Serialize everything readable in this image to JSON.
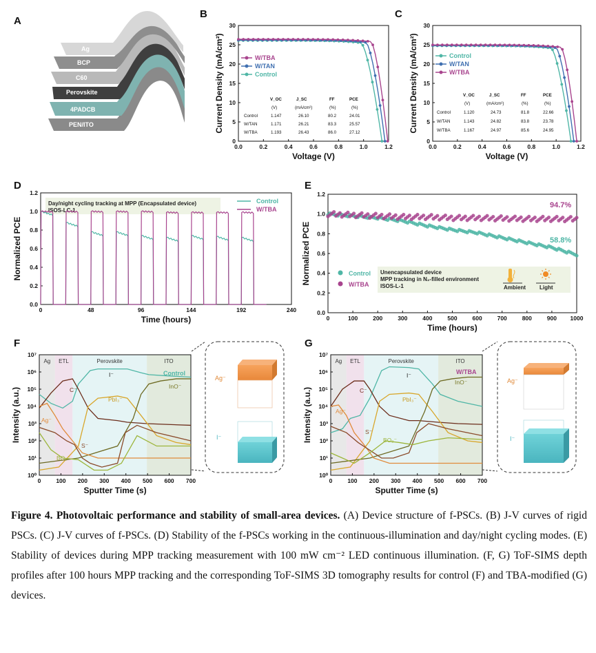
{
  "panelA": {
    "letter": "A",
    "layers": [
      "Ag",
      "BCP",
      "C60",
      "Perovskite",
      "4PADCB",
      "PEN/ITO"
    ]
  },
  "panelB": {
    "letter": "B",
    "legend": [
      "W/TBA",
      "W/TAN",
      "Control"
    ],
    "table": {
      "header1": [
        "V_OC",
        "J_SC",
        "FF",
        "PCE"
      ],
      "header2": [
        "(V)",
        "(mA/cm²)",
        "(%)",
        "(%)"
      ],
      "rows": [
        {
          "name": "Control",
          "voc": "1.147",
          "jsc": "26.10",
          "ff": "80.2",
          "pce": "24.01"
        },
        {
          "name": "W/TAN",
          "voc": "1.171",
          "jsc": "26.21",
          "ff": "83.3",
          "pce": "25.57"
        },
        {
          "name": "W/TBA",
          "voc": "1.193",
          "jsc": "26.43",
          "ff": "86.0",
          "pce": "27.12"
        }
      ]
    }
  },
  "panelC": {
    "letter": "C",
    "legend": [
      "Control",
      "W/TAN",
      "W/TBA"
    ],
    "table": {
      "header1": [
        "V_OC",
        "J_SC",
        "FF",
        "PCE"
      ],
      "header2": [
        "(V)",
        "(mA/cm²)",
        "(%)",
        "(%)"
      ],
      "rows": [
        {
          "name": "Control",
          "voc": "1.120",
          "jsc": "24.73",
          "ff": "81.8",
          "pce": "22.66"
        },
        {
          "name": "W/TAN",
          "voc": "1.143",
          "jsc": "24.82",
          "ff": "83.8",
          "pce": "23.78"
        },
        {
          "name": "W/TBA",
          "voc": "1.167",
          "jsc": "24.97",
          "ff": "85.6",
          "pce": "24.95"
        }
      ]
    }
  },
  "panelD": {
    "letter": "D",
    "annotation1": "Day/night cycling tracking at MPP (Encapsulated device)",
    "annotation2": "ISOS-LC-1",
    "legend": [
      "Control",
      "W/TBA"
    ]
  },
  "panelE": {
    "letter": "E",
    "value_tba": "94.7%",
    "value_control": "58.8%",
    "legend": [
      "Control",
      "W/TBA"
    ],
    "annotation1": "Unencapsulated device",
    "annotation2": "MPP tracking in N₂-filled environment",
    "annotation3": "ISOS-L-1",
    "icon_labels": [
      "Ambient",
      "Light"
    ]
  },
  "panelF": {
    "letter": "F",
    "regions": [
      "Ag",
      "ETL",
      "Perovskite",
      "ITO"
    ],
    "species": [
      "I⁻",
      "C⁻",
      "PbI₃⁻",
      "InO⁻",
      "Ag⁻",
      "S⁻",
      "BO₂⁻"
    ],
    "sample": "Control",
    "tomo": [
      "Ag⁻",
      "I⁻"
    ]
  },
  "panelG": {
    "letter": "G",
    "regions": [
      "Ag",
      "ETL",
      "Perovskite",
      "ITO"
    ],
    "species": [
      "I⁻",
      "C⁻",
      "PbI₃⁻",
      "InO⁻",
      "Ag⁻",
      "S⁻",
      "BO₂⁻"
    ],
    "sample": "W/TBA",
    "tomo": [
      "Ag⁻",
      "I⁻"
    ]
  },
  "colors": {
    "control": "#4fb6a6",
    "tan": "#3f6fb0",
    "tba": "#a8448e"
  },
  "chart_data": [
    {
      "id": "B",
      "type": "line",
      "xlabel": "Voltage (V)",
      "ylabel": "Current Density (mA/cm²)",
      "xlim": [
        0.0,
        1.2
      ],
      "ylim": [
        0,
        30
      ],
      "xticks": [
        "0.0",
        "0.2",
        "0.4",
        "0.6",
        "0.8",
        "1.0",
        "1.2"
      ],
      "yticks": [
        "0",
        "5",
        "10",
        "15",
        "20",
        "25",
        "30"
      ],
      "series": [
        {
          "name": "Control",
          "jsc": 26.1,
          "voc": 1.147,
          "knee": 0.98
        },
        {
          "name": "W/TAN",
          "jsc": 26.21,
          "voc": 1.171,
          "knee": 1.02
        },
        {
          "name": "W/TBA",
          "jsc": 26.43,
          "voc": 1.193,
          "knee": 1.06
        }
      ]
    },
    {
      "id": "C",
      "type": "line",
      "xlabel": "Voltage (V)",
      "ylabel": "Current Density (mA/cm²)",
      "xlim": [
        0.0,
        1.2
      ],
      "ylim": [
        0,
        30
      ],
      "xticks": [
        "0.0",
        "0.2",
        "0.4",
        "0.6",
        "0.8",
        "1.0",
        "1.2"
      ],
      "yticks": [
        "0",
        "5",
        "10",
        "15",
        "20",
        "25",
        "30"
      ],
      "series": [
        {
          "name": "Control",
          "jsc": 24.73,
          "voc": 1.12,
          "knee": 0.96
        },
        {
          "name": "W/TAN",
          "jsc": 24.82,
          "voc": 1.143,
          "knee": 1.0
        },
        {
          "name": "W/TBA",
          "jsc": 24.97,
          "voc": 1.167,
          "knee": 1.04
        }
      ]
    },
    {
      "id": "D",
      "type": "line",
      "xlabel": "Time (hours)",
      "ylabel": "Normalized PCE",
      "xlim": [
        0,
        240
      ],
      "ylim": [
        0.0,
        1.2
      ],
      "xticks": [
        "0",
        "48",
        "96",
        "144",
        "192",
        "240"
      ],
      "yticks": [
        "0.0",
        "0.2",
        "0.4",
        "0.6",
        "0.8",
        "1.0",
        "1.2"
      ],
      "cycle_hours": 24,
      "on_starts": [
        0,
        24,
        48,
        72,
        96,
        120,
        144,
        168,
        192
      ],
      "on_duration": 12,
      "control_on_levels": [
        1.0,
        0.88,
        0.78,
        0.78,
        0.74,
        0.72,
        0.74,
        0.73,
        0.72
      ],
      "tba_on_levels": [
        1.0,
        1.0,
        1.0,
        1.0,
        1.0,
        0.99,
        0.99,
        0.99,
        0.99
      ]
    },
    {
      "id": "E",
      "type": "scatter",
      "xlabel": "Time (hours)",
      "ylabel": "Normalized PCE",
      "xlim": [
        0,
        1000
      ],
      "ylim": [
        0.0,
        1.2
      ],
      "xticks": [
        "0",
        "100",
        "200",
        "300",
        "400",
        "500",
        "600",
        "700",
        "800",
        "900",
        "1000"
      ],
      "yticks": [
        "0.0",
        "0.2",
        "0.4",
        "0.6",
        "0.8",
        "1.0",
        "1.2"
      ],
      "series": [
        {
          "name": "Control",
          "x": [
            0,
            100,
            200,
            300,
            400,
            500,
            600,
            700,
            800,
            900,
            1000
          ],
          "y": [
            1.0,
            0.98,
            0.96,
            0.93,
            0.88,
            0.84,
            0.81,
            0.76,
            0.71,
            0.66,
            0.588
          ]
        },
        {
          "name": "W/TBA",
          "x": [
            0,
            100,
            200,
            300,
            400,
            500,
            600,
            700,
            800,
            900,
            1000
          ],
          "y": [
            1.0,
            0.99,
            0.98,
            0.97,
            0.97,
            0.96,
            0.96,
            0.955,
            0.95,
            0.95,
            0.947
          ]
        }
      ]
    },
    {
      "id": "F",
      "type": "line",
      "yscale": "log",
      "xlabel": "Sputter Time (s)",
      "ylabel": "Intensity (a.u.)",
      "xlim": [
        0,
        775
      ],
      "ylim": [
        1,
        10000000
      ],
      "xticks": [
        "0",
        "100",
        "200",
        "300",
        "400",
        "500",
        "600",
        "700"
      ],
      "yticks": [
        "10⁰",
        "10¹",
        "10²",
        "10³",
        "10⁴",
        "10⁵",
        "10⁶",
        "10⁷"
      ],
      "regions": [
        {
          "name": "Ag",
          "x": [
            0,
            80
          ]
        },
        {
          "name": "ETL",
          "x": [
            80,
            170
          ]
        },
        {
          "name": "Perovskite",
          "x": [
            170,
            550
          ]
        },
        {
          "name": "ITO",
          "x": [
            550,
            775
          ]
        }
      ],
      "series": [
        {
          "name": "I⁻",
          "x": [
            0,
            60,
            120,
            170,
            200,
            260,
            300,
            400,
            450,
            520,
            560,
            650,
            775
          ],
          "y": [
            50000,
            15000,
            8000,
            20000,
            200000,
            1200000,
            1500000,
            1500000,
            1500000,
            900000,
            700000,
            600000,
            500000
          ]
        },
        {
          "name": "C⁻",
          "x": [
            0,
            60,
            120,
            170,
            200,
            250,
            300,
            400,
            450,
            550,
            650,
            775
          ],
          "y": [
            8000,
            60000,
            300000,
            400000,
            100000,
            8000,
            2000,
            1500,
            1200,
            1000,
            900,
            800
          ]
        },
        {
          "name": "PbI₃⁻",
          "x": [
            0,
            100,
            200,
            250,
            300,
            400,
            450,
            520,
            600,
            700,
            775
          ],
          "y": [
            2,
            3,
            50,
            10000,
            30000,
            40000,
            30000,
            3000,
            200,
            80,
            60
          ]
        },
        {
          "name": "InO⁻",
          "x": [
            0,
            200,
            400,
            480,
            520,
            560,
            620,
            700,
            775
          ],
          "y": [
            5,
            10,
            50,
            2000,
            50000,
            200000,
            300000,
            400000,
            400000
          ]
        },
        {
          "name": "Ag⁻",
          "x": [
            0,
            40,
            80,
            120,
            170,
            220,
            300,
            400,
            500,
            600,
            775
          ],
          "y": [
            10000,
            15000,
            3000,
            500,
            100,
            20,
            10,
            10,
            10,
            10,
            10
          ]
        },
        {
          "name": "S⁻",
          "x": [
            0,
            80,
            140,
            180,
            220,
            260,
            320,
            400,
            440,
            500,
            600,
            775
          ],
          "y": [
            600,
            300,
            100,
            60,
            10,
            5,
            3,
            5,
            300,
            800,
            300,
            100
          ]
        },
        {
          "name": "BO₂⁻",
          "x": [
            0,
            60,
            120,
            200,
            280,
            350,
            420,
            500,
            600,
            775
          ],
          "y": [
            300,
            30,
            10,
            8,
            2,
            2,
            5,
            200,
            50,
            50
          ]
        }
      ]
    },
    {
      "id": "G",
      "type": "line",
      "yscale": "log",
      "xlabel": "Sputter Time (s)",
      "ylabel": "Intensity (a.u.)",
      "xlim": [
        0,
        775
      ],
      "ylim": [
        1,
        10000000
      ],
      "xticks": [
        "0",
        "100",
        "200",
        "300",
        "400",
        "500",
        "600",
        "700"
      ],
      "yticks": [
        "10⁰",
        "10¹",
        "10²",
        "10³",
        "10⁴",
        "10⁵",
        "10⁶",
        "10⁷"
      ],
      "regions": [
        {
          "name": "Ag",
          "x": [
            0,
            80
          ]
        },
        {
          "name": "ETL",
          "x": [
            80,
            170
          ]
        },
        {
          "name": "Perovskite",
          "x": [
            170,
            550
          ]
        },
        {
          "name": "ITO",
          "x": [
            550,
            775
          ]
        }
      ],
      "series": [
        {
          "name": "I⁻",
          "x": [
            0,
            60,
            100,
            150,
            200,
            260,
            300,
            400,
            450,
            520,
            560,
            650,
            775
          ],
          "y": [
            300,
            500,
            2000,
            3000,
            30000,
            1200000,
            2000000,
            1800000,
            1500000,
            200000,
            50000,
            20000,
            10000
          ]
        },
        {
          "name": "C⁻",
          "x": [
            0,
            60,
            120,
            170,
            200,
            250,
            300,
            400,
            450,
            550,
            650,
            775
          ],
          "y": [
            10000,
            100000,
            300000,
            300000,
            100000,
            10000,
            3000,
            1500,
            1500,
            1200,
            1000,
            900
          ]
        },
        {
          "name": "PbI₃⁻",
          "x": [
            0,
            100,
            200,
            250,
            300,
            400,
            450,
            520,
            600,
            700,
            775
          ],
          "y": [
            2,
            3,
            100,
            20000,
            50000,
            60000,
            50000,
            5000,
            300,
            100,
            80
          ]
        },
        {
          "name": "InO⁻",
          "x": [
            0,
            200,
            400,
            480,
            520,
            560,
            620,
            700,
            775
          ],
          "y": [
            5,
            10,
            50,
            5000,
            100000,
            300000,
            400000,
            500000,
            500000
          ]
        },
        {
          "name": "Ag⁻",
          "x": [
            0,
            40,
            80,
            120,
            170,
            220,
            300,
            400,
            500,
            600,
            775
          ],
          "y": [
            10000,
            12000,
            3000,
            300,
            60,
            10,
            5,
            5,
            5,
            5,
            5
          ]
        },
        {
          "name": "S⁻",
          "x": [
            0,
            80,
            140,
            180,
            220,
            260,
            320,
            400,
            440,
            500,
            600,
            775
          ],
          "y": [
            700,
            300,
            80,
            40,
            20,
            10,
            10,
            20,
            300,
            1000,
            500,
            200
          ]
        },
        {
          "name": "BO₂⁻",
          "x": [
            0,
            60,
            120,
            200,
            280,
            350,
            420,
            500,
            600,
            775
          ],
          "y": [
            20,
            10,
            5,
            20,
            100,
            80,
            60,
            100,
            150,
            120
          ]
        }
      ]
    }
  ],
  "caption": {
    "bold": "Figure 4. Photovoltaic performance and stability of small-area devices.",
    "text": " (A) Device structure of f-PSCs. (B) J-V curves of rigid PSCs. (C) J-V curves of f-PSCs. (D) Stability of the f-PSCs working in the continuous-illumination and day/night cycling modes. (E) Stability of devices during MPP tracking measurement with 100 mW cm⁻² LED continuous illumination. (F, G) ToF-SIMS depth profiles after 100 hours MPP tracking and the corresponding ToF-SIMS 3D tomography results for control (F) and TBA-modified (G) devices."
  }
}
